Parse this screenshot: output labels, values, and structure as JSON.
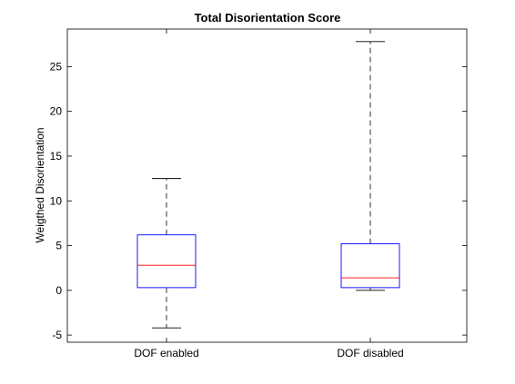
{
  "chart_data": {
    "type": "box",
    "title": "Total Disorientation Score",
    "xlabel": "",
    "ylabel": "Weigthed Disorientation",
    "ylim": [
      -5.8,
      29.2
    ],
    "yticks": [
      -5,
      0,
      5,
      10,
      15,
      20,
      25
    ],
    "ytick_labels": [
      "-5",
      "0",
      "5",
      "10",
      "15",
      "20",
      "25"
    ],
    "categories": [
      "DOF enabled",
      "DOF disabled"
    ],
    "boxes": [
      {
        "name": "DOF enabled",
        "whisker_low": -4.2,
        "q1": 0.3,
        "median": 2.8,
        "q3": 6.2,
        "whisker_high": 12.5
      },
      {
        "name": "DOF disabled",
        "whisker_low": 0.0,
        "q1": 0.3,
        "median": 1.4,
        "q3": 5.2,
        "whisker_high": 27.8
      }
    ],
    "grid": false,
    "colors": {
      "box": "#0000ff",
      "median": "#ff0000",
      "whisker": "#000000",
      "axes": "#000000"
    }
  }
}
